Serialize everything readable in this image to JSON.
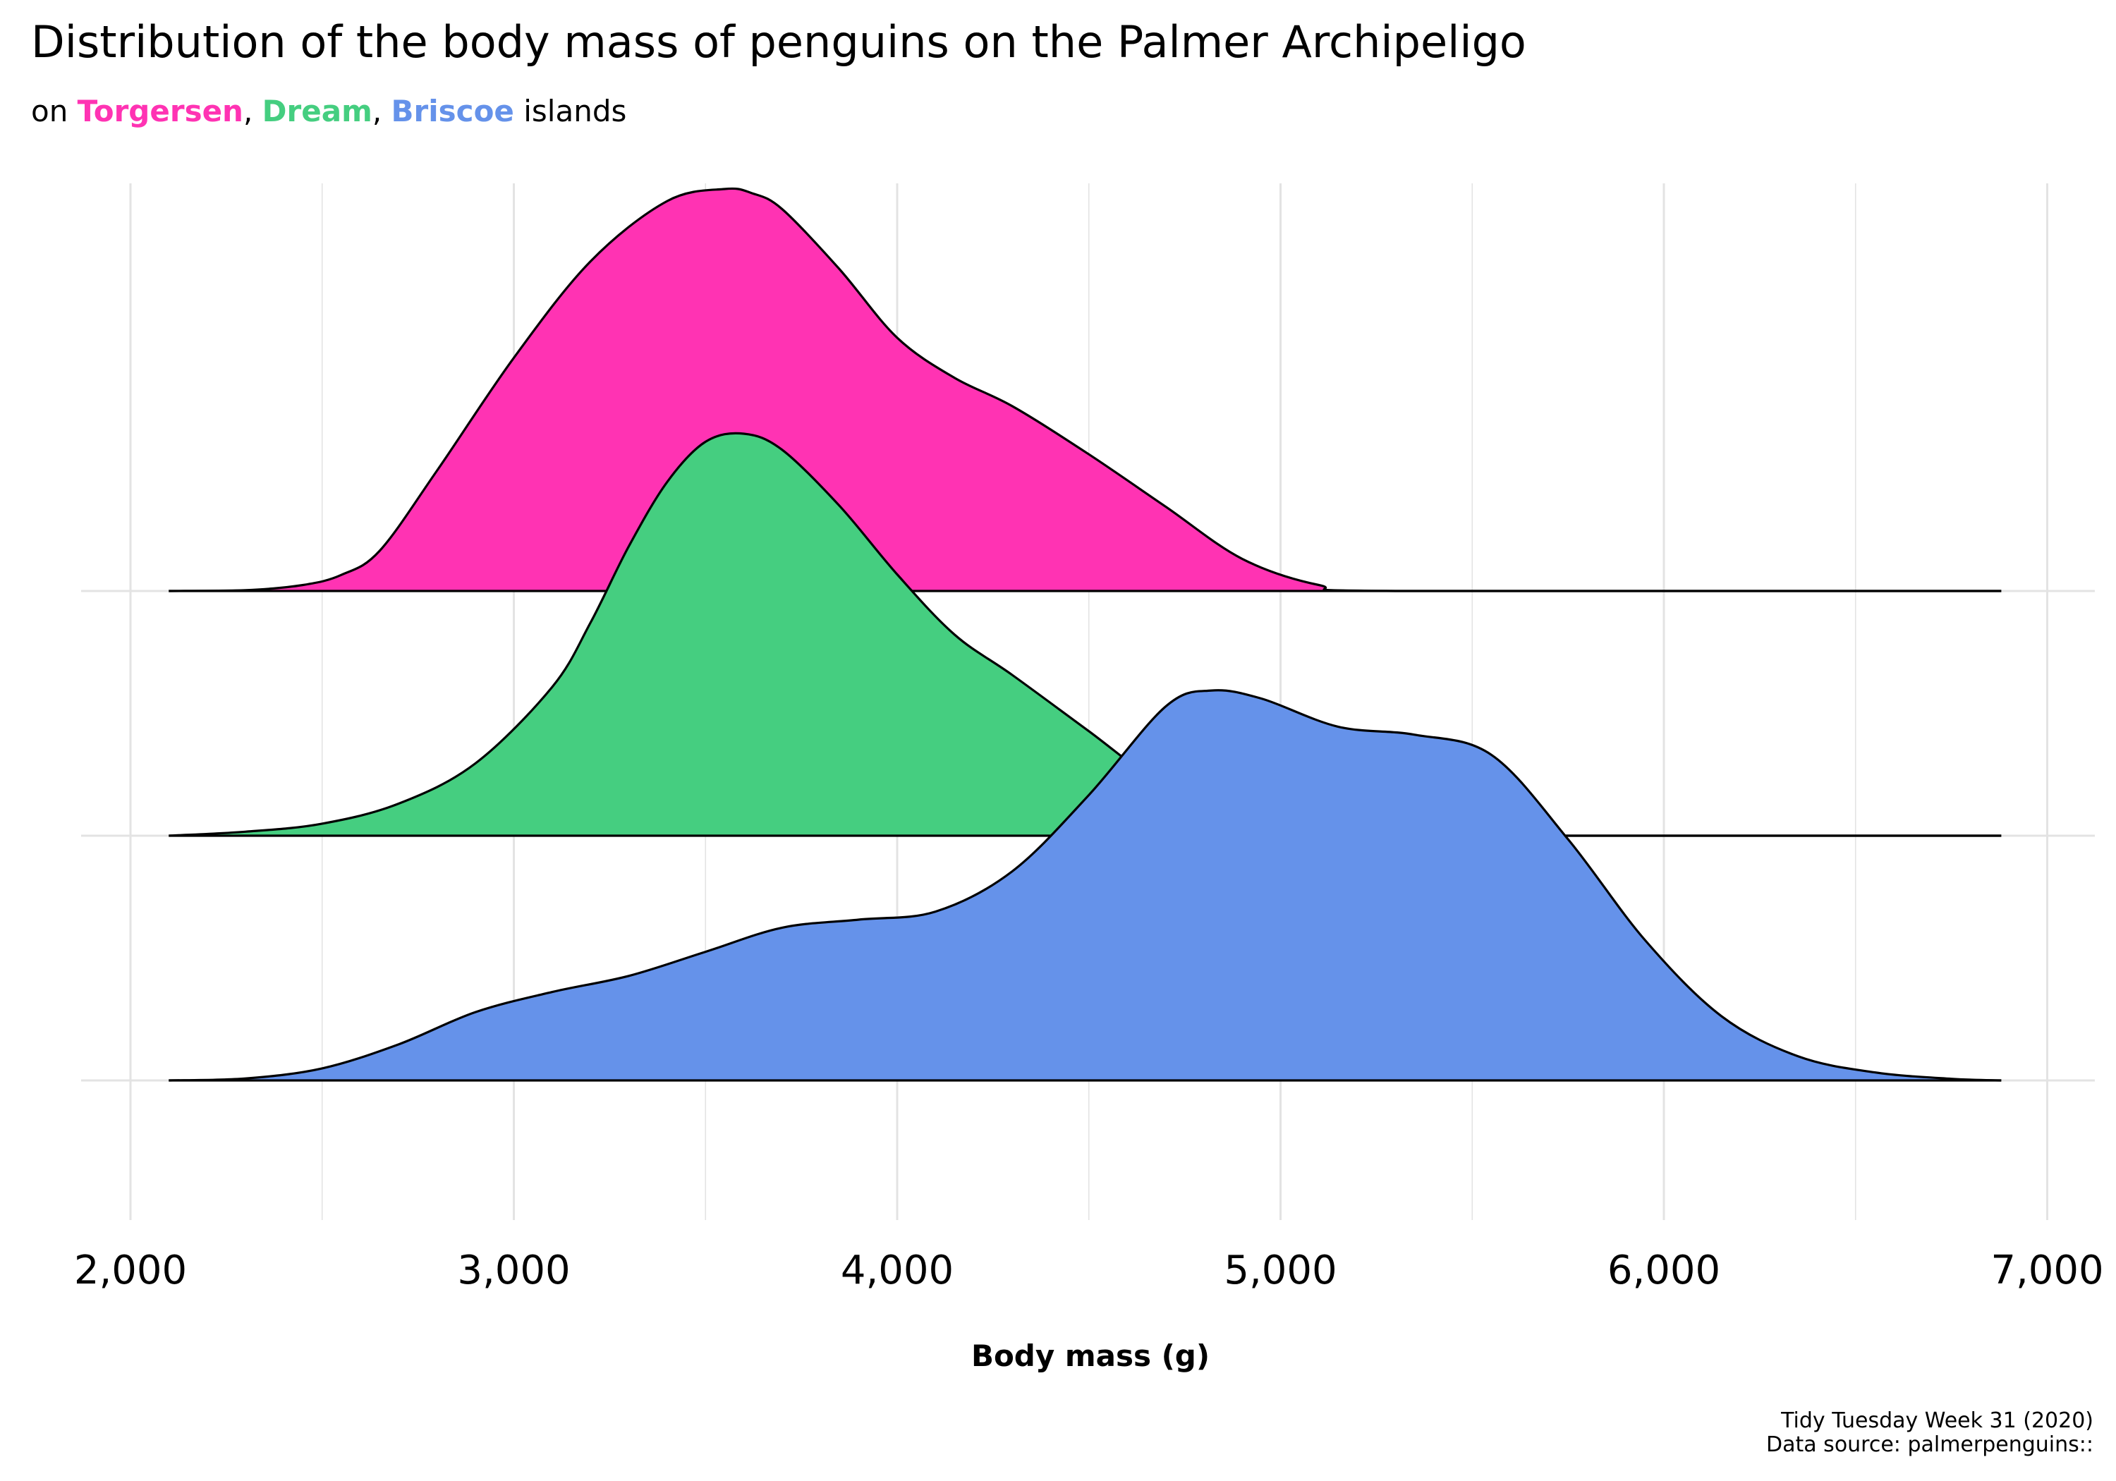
{
  "title": "Distribution of the body mass of penguins on the Palmer Archipeligo",
  "subtitle": {
    "prefix": "on ",
    "islands": [
      {
        "name": "Torgersen",
        "color": "#FF33B3"
      },
      {
        "name": "Dream",
        "color": "#45CE80"
      },
      {
        "name": "Briscoe",
        "color": "#6592EA"
      }
    ],
    "sep": ", ",
    "suffix": " islands"
  },
  "caption": {
    "line1": "Tidy Tuesday Week 31 (2020)",
    "line2": "Data source: palmerpenguins::"
  },
  "chart_data": {
    "type": "area",
    "subtype": "ridgeline-density",
    "xlabel": "Body mass (g)",
    "ylabel": "",
    "xlim": [
      1900,
      7050
    ],
    "x_ticks": [
      2000,
      3000,
      4000,
      5000,
      6000,
      7000
    ],
    "x_tick_labels": [
      "2,000",
      "3,000",
      "4,000",
      "5,000",
      "6,000",
      "7,000"
    ],
    "grid": true,
    "legend": "none",
    "density_range": [
      2100,
      6880
    ],
    "series": [
      {
        "name": "Torgersen",
        "color": "#FF33B3",
        "x": [
          2100,
          2300,
          2450,
          2550,
          2650,
          2800,
          3000,
          3200,
          3400,
          3550,
          3620,
          3700,
          3850,
          4000,
          4150,
          4300,
          4500,
          4700,
          4900,
          5100,
          5300,
          6880
        ],
        "y": [
          0.0,
          0.002,
          0.015,
          0.04,
          0.1,
          0.3,
          0.58,
          0.82,
          0.97,
          1.0,
          0.99,
          0.95,
          0.8,
          0.63,
          0.53,
          0.46,
          0.34,
          0.21,
          0.08,
          0.015,
          0.0,
          0.0
        ]
      },
      {
        "name": "Dream",
        "color": "#45CE80",
        "x": [
          2100,
          2300,
          2500,
          2700,
          2900,
          3100,
          3200,
          3300,
          3400,
          3500,
          3600,
          3700,
          3850,
          4000,
          4150,
          4300,
          4500,
          4700,
          4900,
          5100,
          5300,
          6880
        ],
        "y": [
          0.0,
          0.01,
          0.03,
          0.08,
          0.18,
          0.37,
          0.53,
          0.72,
          0.88,
          0.98,
          1.0,
          0.96,
          0.82,
          0.65,
          0.5,
          0.4,
          0.26,
          0.12,
          0.04,
          0.007,
          0.0,
          0.0
        ]
      },
      {
        "name": "Briscoe",
        "color": "#6592EA",
        "x": [
          2100,
          2300,
          2500,
          2700,
          2900,
          3100,
          3300,
          3500,
          3700,
          3900,
          4100,
          4300,
          4500,
          4700,
          4820,
          4950,
          5150,
          5350,
          5550,
          5750,
          5950,
          6150,
          6350,
          6550,
          6750,
          6880
        ],
        "y": [
          0.0,
          0.005,
          0.03,
          0.09,
          0.17,
          0.22,
          0.26,
          0.32,
          0.38,
          0.4,
          0.42,
          0.52,
          0.71,
          0.93,
          0.97,
          0.95,
          0.88,
          0.86,
          0.81,
          0.6,
          0.35,
          0.16,
          0.06,
          0.02,
          0.004,
          0.0
        ]
      }
    ]
  }
}
